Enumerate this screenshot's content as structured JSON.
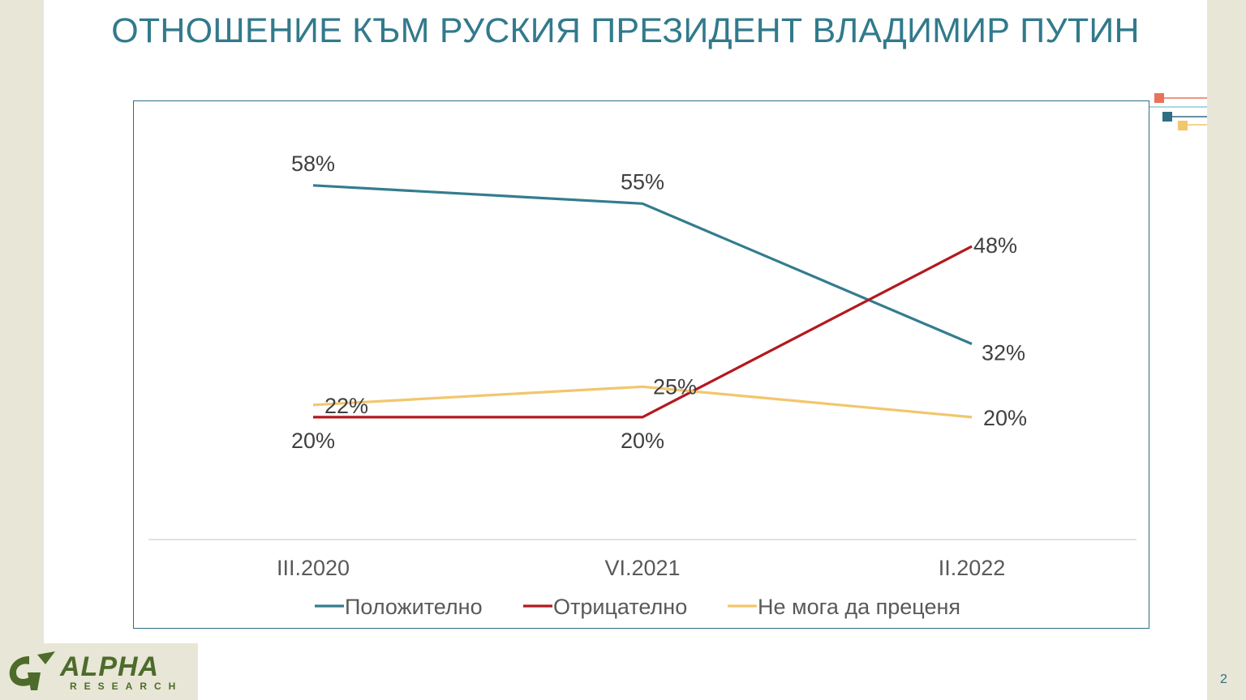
{
  "slide": {
    "title": "ОТНОШЕНИЕ КЪМ РУСКИЯ ПРЕЗИДЕНТ ВЛАДИМИР ПУТИН",
    "page_number": "2",
    "logo_text": "ALPHA",
    "logo_subtext": "RESEARCH"
  },
  "colors": {
    "title": "#317a8c",
    "accent_red": "#e8735a",
    "accent_light_blue": "#8fc8d6",
    "accent_teal": "#2e6e84",
    "accent_yellow": "#f2c66d",
    "logo_green": "#4d6b2a"
  },
  "chart_data": {
    "type": "line",
    "categories": [
      "III.2020",
      "VI.2021",
      "II.2022"
    ],
    "series": [
      {
        "name": "Положително",
        "values": [
          58,
          55,
          32
        ],
        "labels": [
          "58%",
          "55%",
          "32%"
        ],
        "color": "#347c8f"
      },
      {
        "name": "Отрицателно",
        "values": [
          20,
          20,
          48
        ],
        "labels": [
          "20%",
          "20%",
          "48%"
        ],
        "color": "#b3191f"
      },
      {
        "name": "Не мога да преценя",
        "values": [
          22,
          25,
          20
        ],
        "labels": [
          "22%",
          "25%",
          "20%"
        ],
        "color": "#f2c66d"
      }
    ],
    "ylim": [
      0,
      72
    ],
    "grid": false,
    "legend": "bottom"
  }
}
